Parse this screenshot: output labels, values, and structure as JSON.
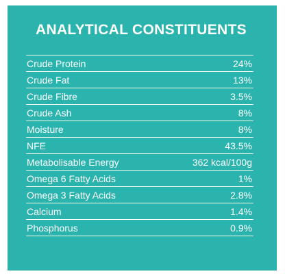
{
  "title": "ANALYTICAL CONSTITUENTS",
  "colors": {
    "panel_background": "#2bb3ad",
    "text": "#ffffff",
    "rule": "#ffffff"
  },
  "rows": [
    {
      "label": "Crude Protein",
      "value": "24%"
    },
    {
      "label": "Crude Fat",
      "value": "13%"
    },
    {
      "label": "Crude Fibre",
      "value": "3.5%"
    },
    {
      "label": "Crude Ash",
      "value": "8%"
    },
    {
      "label": "Moisture",
      "value": "8%"
    },
    {
      "label": "NFE",
      "value": "43.5%"
    },
    {
      "label": "Metabolisable Energy",
      "value": "362 kcal/100g"
    },
    {
      "label": "Omega 6 Fatty Acids",
      "value": "1%"
    },
    {
      "label": "Omega 3 Fatty Acids",
      "value": "2.8%"
    },
    {
      "label": "Calcium",
      "value": "1.4%"
    },
    {
      "label": "Phosphorus",
      "value": "0.9%"
    }
  ]
}
